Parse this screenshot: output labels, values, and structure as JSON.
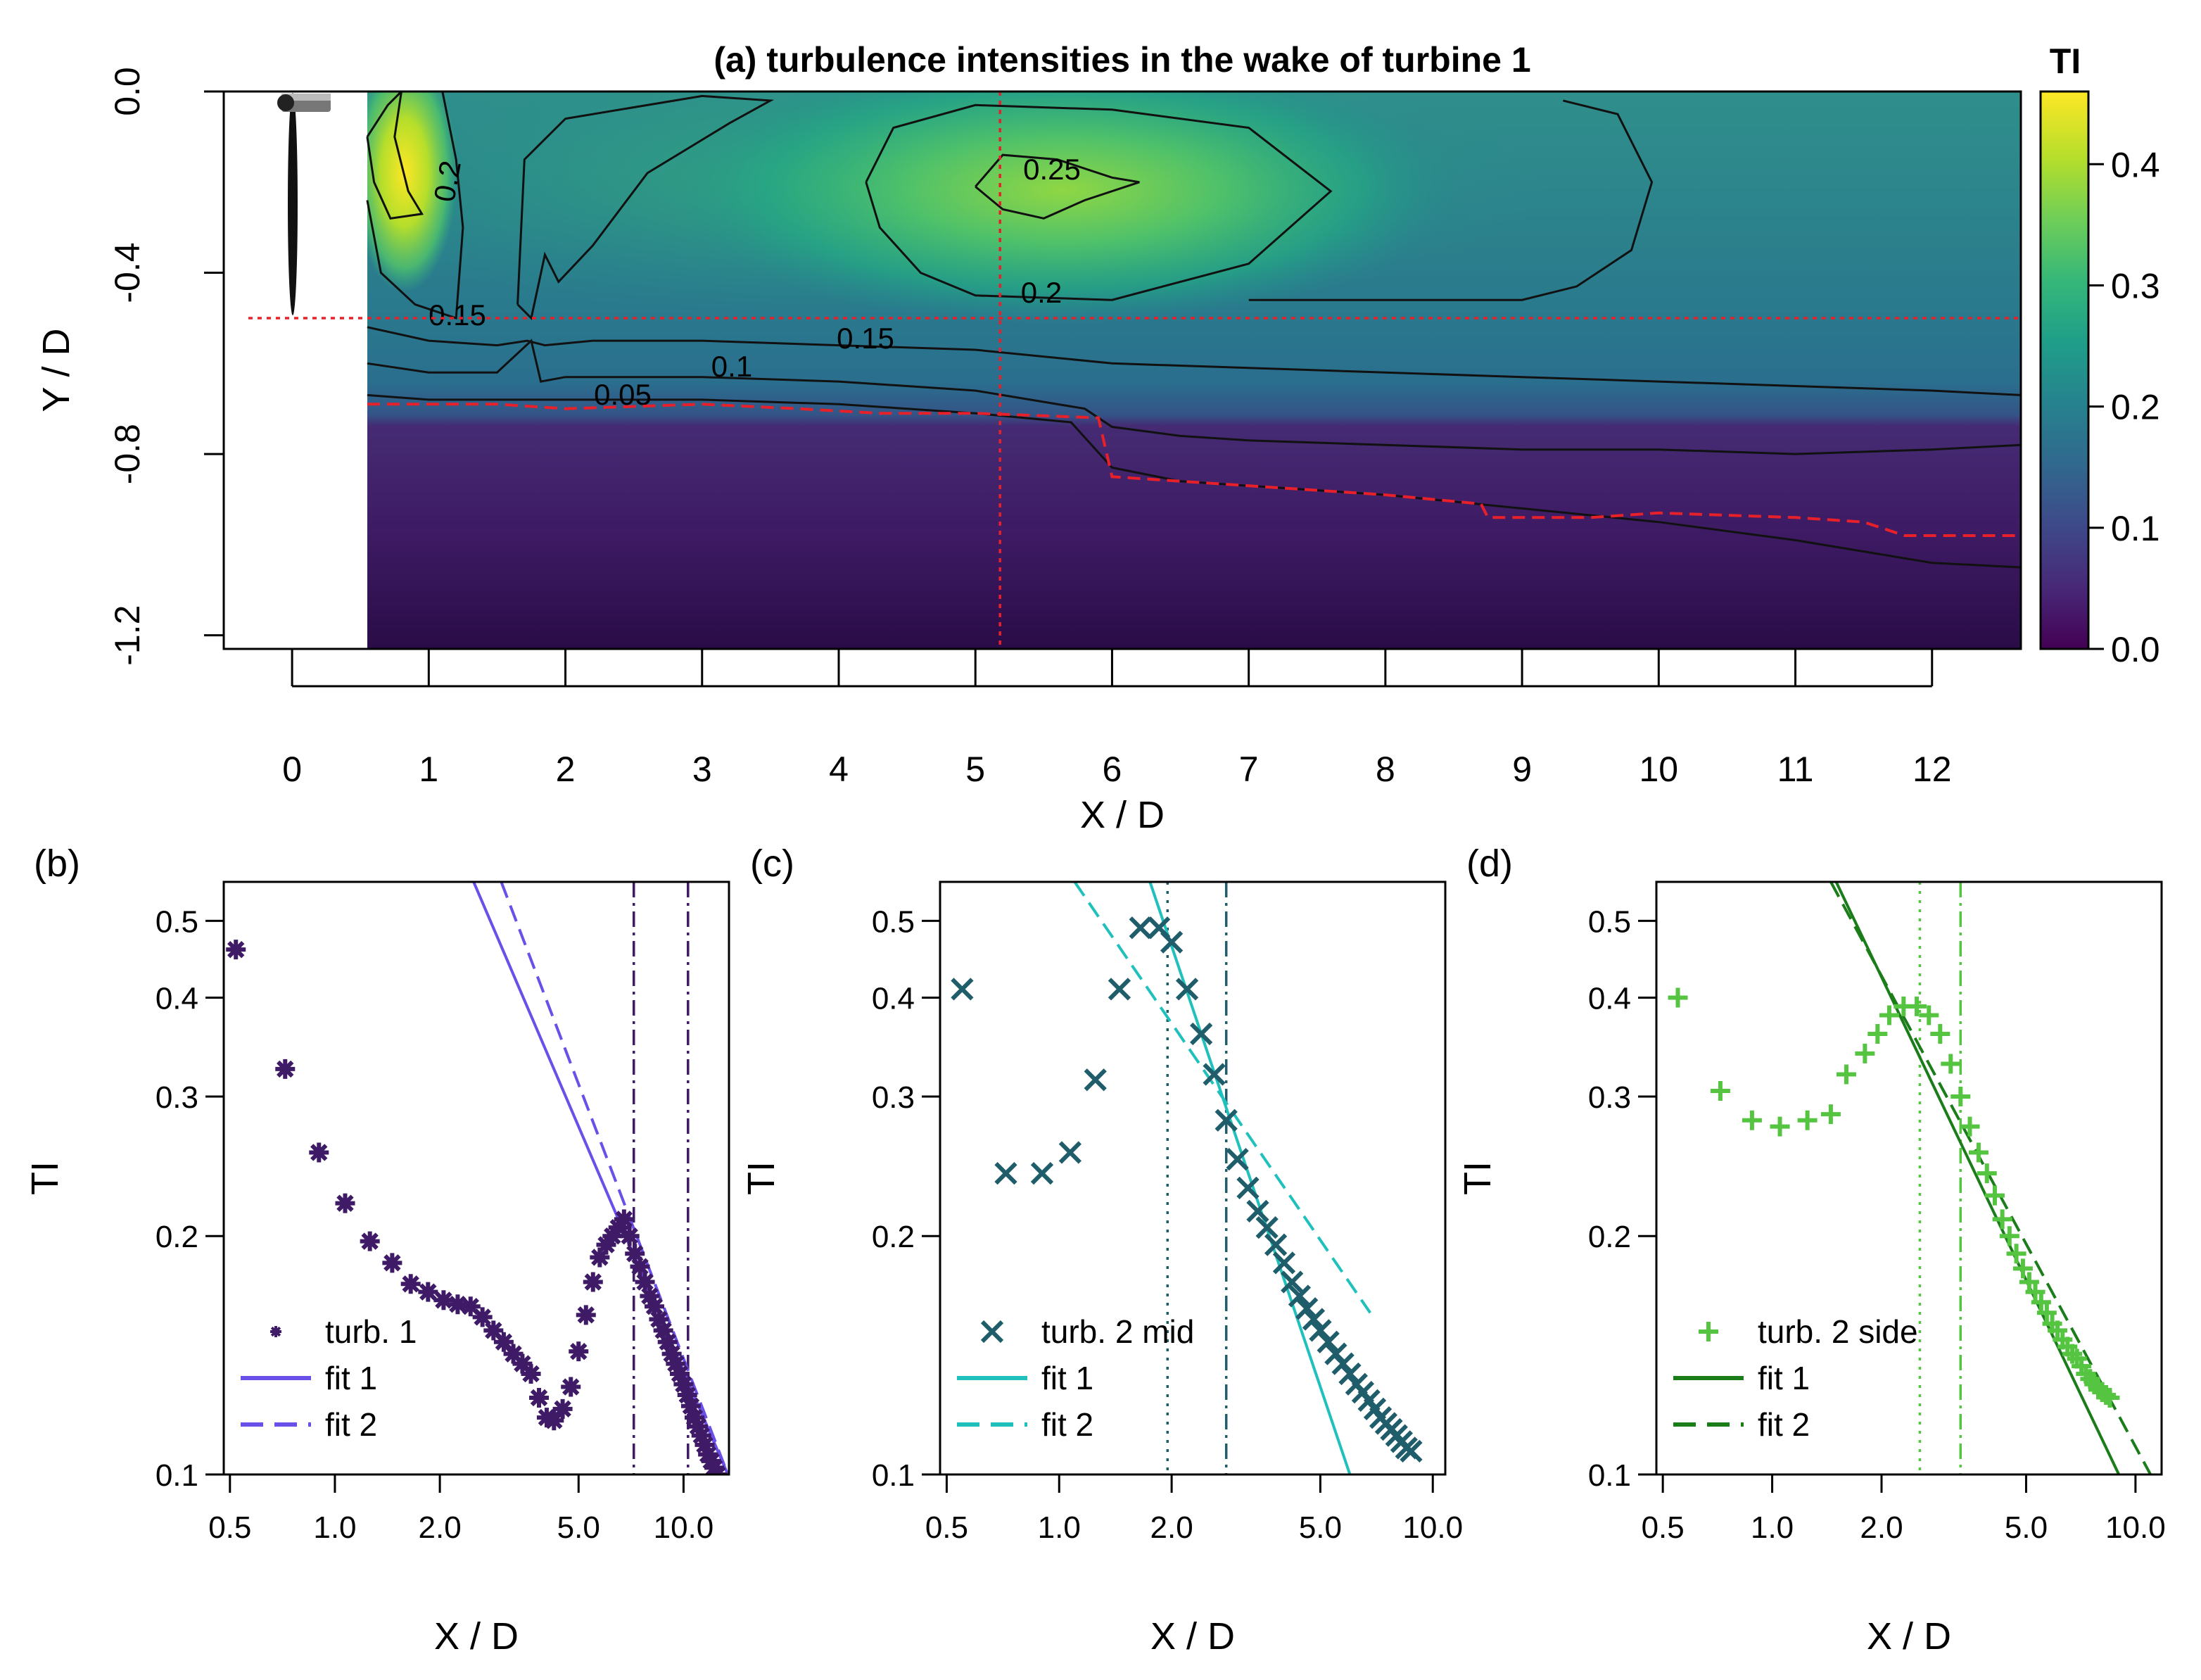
{
  "panel_a": {
    "title": "(a) turbulence intensities in the wake of turbine 1",
    "xlabel": "X / D",
    "ylabel": "Y / D",
    "x_ticks": [
      "0",
      "1",
      "2",
      "3",
      "4",
      "5",
      "6",
      "7",
      "8",
      "9",
      "10",
      "11",
      "12"
    ],
    "x_tick_values": [
      0,
      1,
      2,
      3,
      4,
      5,
      6,
      7,
      8,
      9,
      10,
      11,
      12
    ],
    "y_ticks": [
      "0.0",
      "-0.4",
      "-0.8",
      "-1.2"
    ],
    "y_tick_values": [
      0.0,
      -0.4,
      -0.8,
      -1.2
    ],
    "xlim": [
      -0.5,
      12.65
    ],
    "ylim": [
      -1.23,
      0.0
    ],
    "colorbar": {
      "title": "TI",
      "ticks": [
        "0.0",
        "0.1",
        "0.2",
        "0.3",
        "0.4"
      ],
      "tick_values": [
        0,
        0.1,
        0.2,
        0.3,
        0.4
      ],
      "range": [
        0,
        0.46
      ],
      "colors": [
        "#440154",
        "#482878",
        "#3e4989",
        "#31688e",
        "#26828e",
        "#1f9e89",
        "#35b779",
        "#6ece58",
        "#b5de2b",
        "#fde725"
      ]
    },
    "contour_labels": [
      "0.25",
      "0.2",
      "0.2",
      "0.15",
      "0.15",
      "0.1",
      "0.05"
    ],
    "contours": [
      {
        "level": "0.25",
        "points": [
          [
            5.0,
            -0.21
          ],
          [
            5.2,
            -0.14
          ],
          [
            5.6,
            -0.15
          ],
          [
            6.0,
            -0.19
          ],
          [
            6.2,
            -0.2
          ],
          [
            5.8,
            -0.24
          ],
          [
            5.5,
            -0.28
          ],
          [
            5.2,
            -0.26
          ],
          [
            5.0,
            -0.21
          ]
        ]
      },
      {
        "level": "0.2",
        "points": [
          [
            4.2,
            -0.2
          ],
          [
            4.4,
            -0.08
          ],
          [
            5.0,
            -0.03
          ],
          [
            6.0,
            -0.04
          ],
          [
            7.0,
            -0.08
          ],
          [
            7.6,
            -0.22
          ],
          [
            7.0,
            -0.38
          ],
          [
            6.0,
            -0.46
          ],
          [
            5.0,
            -0.45
          ],
          [
            4.6,
            -0.4
          ],
          [
            4.3,
            -0.3
          ],
          [
            4.2,
            -0.2
          ]
        ]
      },
      {
        "level": "0.2",
        "points": [
          [
            1.65,
            -0.47
          ],
          [
            1.7,
            -0.15
          ],
          [
            2.0,
            -0.06
          ],
          [
            3.0,
            -0.01
          ],
          [
            3.5,
            -0.02
          ],
          [
            3.2,
            -0.07
          ],
          [
            2.6,
            -0.18
          ],
          [
            2.2,
            -0.34
          ],
          [
            1.95,
            -0.42
          ],
          [
            1.85,
            -0.36
          ],
          [
            1.75,
            -0.5
          ],
          [
            1.65,
            -0.47
          ]
        ]
      },
      {
        "level": "0.2",
        "points": [
          [
            9.3,
            -0.02
          ],
          [
            9.7,
            -0.05
          ],
          [
            9.95,
            -0.2
          ],
          [
            9.8,
            -0.35
          ],
          [
            9.4,
            -0.43
          ],
          [
            9.0,
            -0.46
          ],
          [
            7.0,
            -0.46
          ]
        ]
      },
      {
        "level": "0.2",
        "points": [
          [
            0.55,
            -0.1
          ],
          [
            0.7,
            -0.03
          ],
          [
            0.8,
            0.0
          ],
          [
            0.75,
            -0.1
          ],
          [
            0.85,
            -0.22
          ],
          [
            0.95,
            -0.27
          ],
          [
            0.72,
            -0.28
          ],
          [
            0.6,
            -0.2
          ],
          [
            0.55,
            -0.1
          ]
        ]
      },
      {
        "level": "0.2",
        "points": [
          [
            0.55,
            -0.24
          ],
          [
            0.65,
            -0.4
          ],
          [
            0.9,
            -0.47
          ],
          [
            1.2,
            -0.5
          ],
          [
            1.25,
            -0.3
          ],
          [
            1.2,
            -0.15
          ],
          [
            1.1,
            0.0
          ]
        ]
      },
      {
        "level": "0.15",
        "points": [
          [
            0.55,
            -0.52
          ],
          [
            1.0,
            -0.55
          ],
          [
            1.5,
            -0.56
          ],
          [
            1.72,
            -0.55
          ],
          [
            1.85,
            -0.56
          ],
          [
            2.2,
            -0.55
          ],
          [
            3.0,
            -0.55
          ],
          [
            4.0,
            -0.56
          ],
          [
            5.0,
            -0.57
          ],
          [
            6.0,
            -0.6
          ],
          [
            7.0,
            -0.61
          ],
          [
            8.0,
            -0.62
          ],
          [
            9.0,
            -0.63
          ],
          [
            10.0,
            -0.64
          ],
          [
            11.0,
            -0.65
          ],
          [
            12.0,
            -0.66
          ],
          [
            12.65,
            -0.67
          ]
        ]
      },
      {
        "level": "0.1",
        "points": [
          [
            0.55,
            -0.6
          ],
          [
            1.0,
            -0.62
          ],
          [
            1.5,
            -0.62
          ],
          [
            1.75,
            -0.55
          ],
          [
            1.82,
            -0.64
          ],
          [
            2.0,
            -0.63
          ],
          [
            3.0,
            -0.63
          ],
          [
            4.0,
            -0.64
          ],
          [
            5.0,
            -0.66
          ],
          [
            5.8,
            -0.7
          ],
          [
            6.0,
            -0.74
          ],
          [
            6.5,
            -0.76
          ],
          [
            7.0,
            -0.77
          ],
          [
            8.0,
            -0.78
          ],
          [
            9.0,
            -0.79
          ],
          [
            10.0,
            -0.79
          ],
          [
            11.0,
            -0.8
          ],
          [
            12.0,
            -0.79
          ],
          [
            12.65,
            -0.78
          ]
        ]
      },
      {
        "level": "0.05",
        "points": [
          [
            0.55,
            -0.67
          ],
          [
            1.0,
            -0.68
          ],
          [
            2.0,
            -0.68
          ],
          [
            3.0,
            -0.68
          ],
          [
            4.0,
            -0.69
          ],
          [
            5.0,
            -0.71
          ],
          [
            5.7,
            -0.73
          ],
          [
            6.0,
            -0.83
          ],
          [
            6.5,
            -0.86
          ],
          [
            7.0,
            -0.87
          ],
          [
            8.0,
            -0.89
          ],
          [
            9.0,
            -0.92
          ],
          [
            10.0,
            -0.95
          ],
          [
            11.0,
            -0.99
          ],
          [
            12.0,
            -1.04
          ],
          [
            12.65,
            -1.05
          ]
        ]
      }
    ],
    "red_guides": {
      "vertical_x": 5.18,
      "horizontal_y": -0.5
    },
    "red_dashed_boundary": [
      [
        0.55,
        -0.69
      ],
      [
        1.5,
        -0.69
      ],
      [
        2.0,
        -0.7
      ],
      [
        3.0,
        -0.69
      ],
      [
        3.7,
        -0.7
      ],
      [
        4.3,
        -0.71
      ],
      [
        5.0,
        -0.71
      ],
      [
        5.9,
        -0.72
      ],
      [
        6.0,
        -0.85
      ],
      [
        7.0,
        -0.87
      ],
      [
        8.0,
        -0.89
      ],
      [
        8.7,
        -0.91
      ],
      [
        8.75,
        -0.94
      ],
      [
        9.5,
        -0.94
      ],
      [
        10.0,
        -0.93
      ],
      [
        11.0,
        -0.94
      ],
      [
        11.5,
        -0.95
      ],
      [
        11.8,
        -0.98
      ],
      [
        12.65,
        -0.98
      ]
    ]
  },
  "chart_data": [
    {
      "panel": "(b)",
      "type": "scatter",
      "xlabel": "X / D",
      "ylabel": "TI",
      "x_log": true,
      "y_log": true,
      "xlim": [
        0.48,
        13.5
      ],
      "ylim": [
        0.1,
        0.56
      ],
      "x_ticks": [
        "0.5",
        "1.0",
        "2.0",
        "5.0",
        "10.0"
      ],
      "x_tick_values": [
        0.5,
        1.0,
        2.0,
        5.0,
        10.0
      ],
      "y_ticks": [
        "0.1",
        "0.2",
        "0.3",
        "0.4",
        "0.5"
      ],
      "y_tick_values": [
        0.1,
        0.2,
        0.3,
        0.4,
        0.5
      ],
      "series": [
        {
          "name": "turb. 1",
          "marker": "*",
          "color": "#3f1a66",
          "x": [
            0.52,
            0.72,
            0.9,
            1.07,
            1.26,
            1.46,
            1.65,
            1.85,
            2.05,
            2.25,
            2.45,
            2.65,
            2.85,
            3.05,
            3.25,
            3.45,
            3.65,
            3.85,
            4.05,
            4.25,
            4.5,
            4.75,
            5.0,
            5.25,
            5.5,
            5.75,
            6.0,
            6.25,
            6.5,
            6.75,
            7.0,
            7.25,
            7.5,
            7.75,
            8.0,
            8.25,
            8.5,
            8.75,
            9.0,
            9.25,
            9.5,
            9.75,
            10.0,
            10.25,
            10.5,
            10.75,
            11.0,
            11.25,
            11.5,
            11.75,
            12.0,
            12.25,
            12.5
          ],
          "y": [
            0.46,
            0.325,
            0.255,
            0.22,
            0.197,
            0.185,
            0.174,
            0.17,
            0.166,
            0.164,
            0.163,
            0.158,
            0.152,
            0.147,
            0.142,
            0.138,
            0.134,
            0.125,
            0.118,
            0.117,
            0.121,
            0.129,
            0.143,
            0.159,
            0.175,
            0.188,
            0.195,
            0.2,
            0.205,
            0.21,
            0.2,
            0.19,
            0.183,
            0.175,
            0.168,
            0.163,
            0.157,
            0.152,
            0.147,
            0.142,
            0.138,
            0.134,
            0.13,
            0.126,
            0.122,
            0.118,
            0.115,
            0.112,
            0.109,
            0.106,
            0.104,
            0.102,
            0.1
          ]
        },
        {
          "name": "fit 1",
          "line": "solid",
          "color": "#6a4fe8",
          "x": [
            2.5,
            13.4
          ],
          "y": [
            0.56,
            0.1
          ]
        },
        {
          "name": "fit 2",
          "line": "dashed",
          "color": "#6a4fe8",
          "x": [
            3.0,
            13.4
          ],
          "y": [
            0.56,
            0.1
          ]
        }
      ],
      "vlines": [
        {
          "x": 7.2,
          "style": "dashdot"
        },
        {
          "x": 10.3,
          "style": "dashdot"
        }
      ],
      "legend": [
        "turb. 1",
        "fit 1",
        "fit 2"
      ],
      "legend_position": "bottom-left"
    },
    {
      "panel": "(c)",
      "type": "scatter",
      "xlabel": "X / D",
      "ylabel": "TI",
      "x_log": true,
      "y_log": true,
      "xlim": [
        0.48,
        10.8
      ],
      "ylim": [
        0.1,
        0.56
      ],
      "x_ticks": [
        "0.5",
        "1.0",
        "2.0",
        "5.0",
        "10.0"
      ],
      "x_tick_values": [
        0.5,
        1.0,
        2.0,
        5.0,
        10.0
      ],
      "y_ticks": [
        "0.1",
        "0.2",
        "0.3",
        "0.4",
        "0.5"
      ],
      "y_tick_values": [
        0.1,
        0.2,
        0.3,
        0.4,
        0.5
      ],
      "series": [
        {
          "name": "turb. 2 mid",
          "marker": "x",
          "color": "#1f5d6b",
          "x": [
            0.55,
            0.72,
            0.9,
            1.07,
            1.25,
            1.45,
            1.65,
            1.85,
            2.0,
            2.2,
            2.4,
            2.6,
            2.8,
            3.0,
            3.2,
            3.4,
            3.6,
            3.8,
            4.0,
            4.2,
            4.4,
            4.6,
            4.8,
            5.0,
            5.25,
            5.5,
            5.75,
            6.0,
            6.25,
            6.5,
            6.75,
            7.0,
            7.25,
            7.5,
            7.75,
            8.0,
            8.25,
            8.5,
            8.75
          ],
          "y": [
            0.41,
            0.24,
            0.24,
            0.255,
            0.315,
            0.41,
            0.49,
            0.49,
            0.47,
            0.41,
            0.36,
            0.32,
            0.28,
            0.25,
            0.23,
            0.215,
            0.205,
            0.195,
            0.185,
            0.175,
            0.168,
            0.162,
            0.157,
            0.152,
            0.147,
            0.142,
            0.138,
            0.134,
            0.13,
            0.127,
            0.124,
            0.121,
            0.118,
            0.116,
            0.114,
            0.112,
            0.11,
            0.108,
            0.107
          ]
        },
        {
          "name": "fit 1",
          "line": "solid",
          "color": "#20c0bd",
          "x": [
            1.75,
            6.0
          ],
          "y": [
            0.56,
            0.1
          ]
        },
        {
          "name": "fit 2",
          "line": "dashed",
          "color": "#20c0bd",
          "x": [
            1.1,
            6.8
          ],
          "y": [
            0.56,
            0.16
          ]
        }
      ],
      "vlines": [
        {
          "x": 1.95,
          "style": "dotted"
        },
        {
          "x": 2.8,
          "style": "dashdot"
        }
      ],
      "legend": [
        "turb. 2 mid",
        "fit 1",
        "fit 2"
      ],
      "legend_position": "bottom-left"
    },
    {
      "panel": "(d)",
      "type": "scatter",
      "xlabel": "X / D",
      "ylabel": "TI",
      "x_log": true,
      "y_log": true,
      "xlim": [
        0.48,
        11.8
      ],
      "ylim": [
        0.1,
        0.56
      ],
      "x_ticks": [
        "0.5",
        "1.0",
        "2.0",
        "5.0",
        "10.0"
      ],
      "x_tick_values": [
        0.5,
        1.0,
        2.0,
        5.0,
        10.0
      ],
      "y_ticks": [
        "0.1",
        "0.2",
        "0.3",
        "0.4",
        "0.5"
      ],
      "y_tick_values": [
        0.1,
        0.2,
        0.3,
        0.4,
        0.5
      ],
      "series": [
        {
          "name": "turb. 2 side",
          "marker": "+",
          "color": "#55c441",
          "x": [
            0.55,
            0.72,
            0.88,
            1.05,
            1.25,
            1.45,
            1.6,
            1.8,
            1.95,
            2.1,
            2.3,
            2.5,
            2.7,
            2.9,
            3.1,
            3.3,
            3.5,
            3.7,
            3.9,
            4.1,
            4.3,
            4.5,
            4.7,
            4.9,
            5.1,
            5.3,
            5.5,
            5.7,
            5.9,
            6.1,
            6.3,
            6.5,
            6.7,
            6.9,
            7.1,
            7.3,
            7.5,
            7.7,
            7.9,
            8.1,
            8.3,
            8.5
          ],
          "y": [
            0.4,
            0.305,
            0.28,
            0.275,
            0.28,
            0.285,
            0.32,
            0.34,
            0.36,
            0.38,
            0.39,
            0.39,
            0.38,
            0.36,
            0.33,
            0.3,
            0.275,
            0.255,
            0.24,
            0.225,
            0.21,
            0.2,
            0.19,
            0.182,
            0.175,
            0.17,
            0.165,
            0.16,
            0.155,
            0.152,
            0.148,
            0.145,
            0.142,
            0.14,
            0.137,
            0.134,
            0.132,
            0.13,
            0.128,
            0.127,
            0.126,
            0.125
          ]
        },
        {
          "name": "fit 1",
          "line": "solid",
          "color": "#1a7d1a",
          "x": [
            1.5,
            9.0
          ],
          "y": [
            0.56,
            0.1
          ]
        },
        {
          "name": "fit 2",
          "line": "dashed",
          "color": "#1a7d1a",
          "x": [
            1.45,
            11.0
          ],
          "y": [
            0.56,
            0.1
          ]
        }
      ],
      "vlines": [
        {
          "x": 2.55,
          "style": "dotted"
        },
        {
          "x": 3.3,
          "style": "dashdot"
        }
      ],
      "legend": [
        "turb. 2 side",
        "fit 1",
        "fit 2"
      ],
      "legend_position": "bottom-left"
    }
  ]
}
